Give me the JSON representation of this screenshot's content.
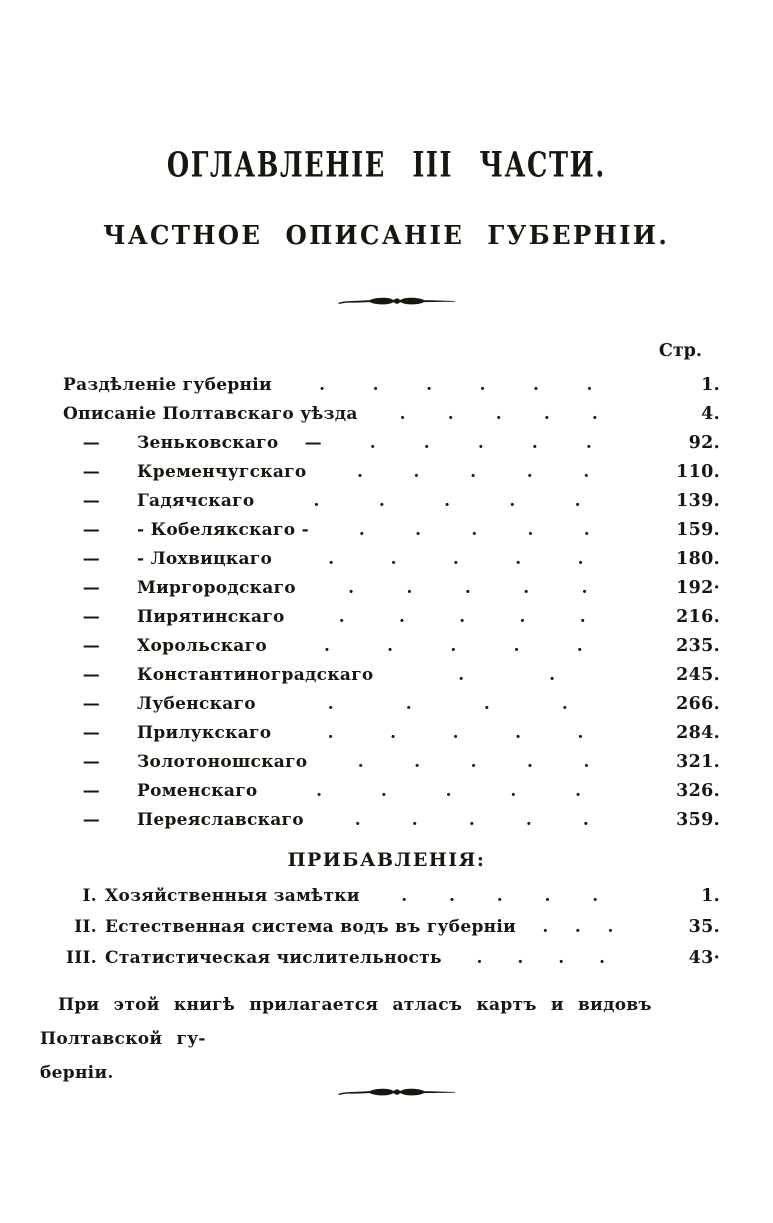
{
  "page": {
    "title": "ОГЛАВЛЕНІЕ III ЧАСТИ.",
    "subtitle": "ЧАСТНОЕ ОПИСАНІЕ ГУБЕРНІИ.",
    "ink_color": "#19150f",
    "paper_color": "#ffffff"
  },
  "icons": {
    "divider_ornament": "tapered-rule-with-knots"
  },
  "toc": {
    "column_header": "Стр.",
    "rows": [
      {
        "prefix": "",
        "indent": false,
        "label": "Раздѣленіе губерніи",
        "dots": 6,
        "page": "1."
      },
      {
        "prefix": "",
        "indent": false,
        "label": "Описаніе Полтавскаго уѣзда",
        "dots": 5,
        "page": "4."
      },
      {
        "prefix": "—",
        "indent": true,
        "label": "Зеньковскаго  —",
        "dots": 5,
        "page": "92."
      },
      {
        "prefix": "—",
        "indent": true,
        "label": "Кременчугскаго",
        "dots": 5,
        "page": "110."
      },
      {
        "prefix": "—",
        "indent": true,
        "label": "Гадячскаго",
        "dots": 5,
        "page": "139."
      },
      {
        "prefix": "—",
        "indent": true,
        "label": "- Кобелякскаго -",
        "dots": 5,
        "page": "159."
      },
      {
        "prefix": "—",
        "indent": true,
        "label": "- Лохвицкаго",
        "dots": 5,
        "page": "180."
      },
      {
        "prefix": "—",
        "indent": true,
        "label": "Миргородскаго",
        "dots": 5,
        "page": "192·"
      },
      {
        "prefix": "—",
        "indent": true,
        "label": "Пирятинскаго",
        "dots": 5,
        "page": "216."
      },
      {
        "prefix": "—",
        "indent": true,
        "label": "Хорольскаго",
        "dots": 5,
        "page": "235."
      },
      {
        "prefix": "—",
        "indent": true,
        "label": "Константиноградскаго",
        "dots": 2,
        "page": "245."
      },
      {
        "prefix": "—",
        "indent": true,
        "label": "Лубенскаго",
        "dots": 4,
        "page": "266."
      },
      {
        "prefix": "—",
        "indent": true,
        "label": "Прилукскаго",
        "dots": 5,
        "page": "284."
      },
      {
        "prefix": "—",
        "indent": true,
        "label": "Золотоношскаго",
        "dots": 5,
        "page": "321."
      },
      {
        "prefix": "—",
        "indent": true,
        "label": "Роменскаго",
        "dots": 5,
        "page": "326."
      },
      {
        "prefix": "—",
        "indent": true,
        "label": "Переяславскаго",
        "dots": 5,
        "page": "359."
      }
    ]
  },
  "appendix": {
    "title": "ПРИБАВЛЕНІЯ:",
    "rows": [
      {
        "numeral": "I.",
        "label": "Хозяйственныя замѣтки",
        "dots": 5,
        "page": "1."
      },
      {
        "numeral": "II.",
        "label": "Естественная система водъ въ губерніи",
        "dots": 3,
        "page": "35."
      },
      {
        "numeral": "III.",
        "label": "Статистическая числительность",
        "dots": 4,
        "page": "43·"
      }
    ]
  },
  "note": {
    "lines": [
      "При этой книгѣ прилагается атласъ картъ и видовъ Полтавской гу-",
      "берніи."
    ]
  }
}
